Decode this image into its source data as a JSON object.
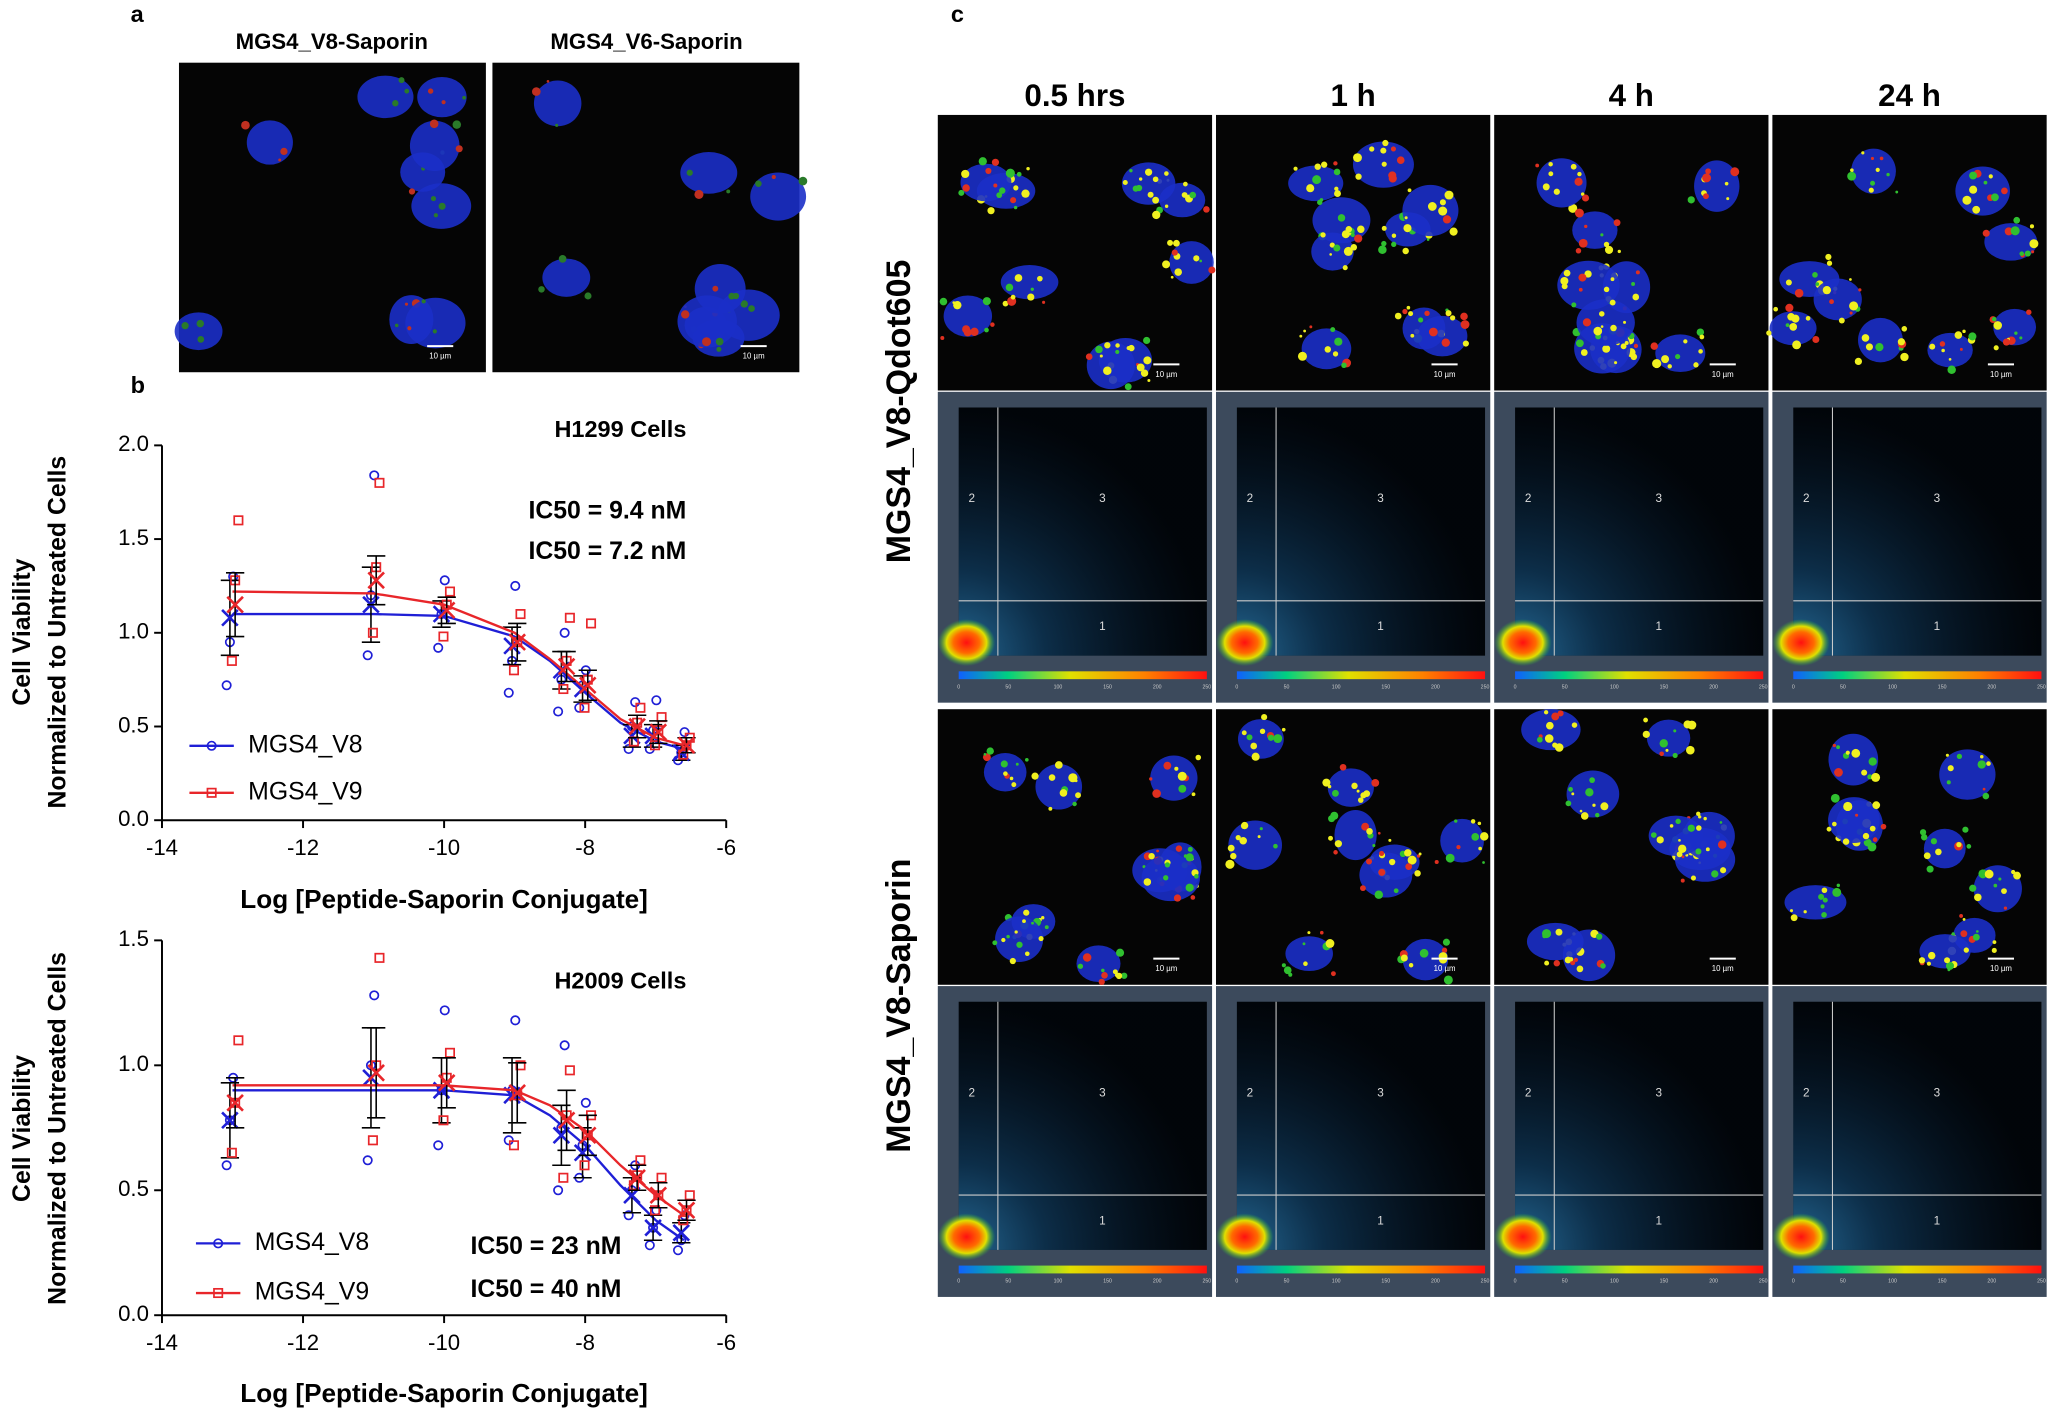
{
  "panel_labels": [
    "a",
    "b",
    "c"
  ],
  "panel_a": {
    "titles": [
      "MGS4_V8-Saporin",
      "MGS4_V6-Saporin"
    ],
    "scale_bar": "10 µm"
  },
  "panel_c": {
    "columns": [
      "0.5 hrs",
      "1 h",
      "4 h",
      "24 h"
    ],
    "rows": [
      "MGS4_V8-Qdot605",
      "MGS4_V8-Saporin"
    ],
    "quadrants": [
      "1",
      "2",
      "3"
    ],
    "colorbar_ticks": [
      "0",
      "50",
      "100",
      "150",
      "200",
      "250"
    ]
  },
  "chart_data": [
    {
      "type": "line",
      "title": "H1299 Cells",
      "annotations": [
        "IC50 = 9.4 nM",
        "IC50 = 7.2 nM"
      ],
      "x_label": "Log [Peptide-Saporin Conjugate]",
      "y_label": [
        "Cell Viability",
        "Normalized to Untreated Cells"
      ],
      "xlim": [
        -14,
        -6
      ],
      "xticks": [
        -14,
        -12,
        -10,
        -8,
        -6
      ],
      "ylim": [
        0,
        2
      ],
      "yticks": [
        {
          "value": 0,
          "label": "0.0"
        },
        0.5,
        {
          "value": 1,
          "label": "1.0"
        },
        1.5,
        {
          "value": 2,
          "label": "2.0"
        }
      ],
      "series": [
        {
          "name": "MGS4_V8",
          "color": "#1f1fd6",
          "marker": "circle",
          "x": [
            -13,
            -11,
            -10,
            -9,
            -8.3,
            -8,
            -7.3,
            -7,
            -6.6
          ],
          "values": [
            1.08,
            1.15,
            1.1,
            0.93,
            0.8,
            0.7,
            0.45,
            0.45,
            0.36
          ],
          "errors": [
            0.2,
            0.2,
            0.07,
            0.1,
            0.1,
            0.07,
            0.06,
            0.06,
            0.04
          ],
          "replicates": [
            [
              0.72,
              0.95,
              1.3
            ],
            [
              0.88,
              1.2,
              1.84
            ],
            [
              0.92,
              1.1,
              1.28
            ],
            [
              0.68,
              0.85,
              1.25
            ],
            [
              0.58,
              0.75,
              1.0
            ],
            [
              0.6,
              0.72,
              0.8
            ],
            [
              0.38,
              0.5,
              0.63
            ],
            [
              0.38,
              0.48,
              0.64
            ],
            [
              0.32,
              0.36,
              0.47
            ]
          ],
          "fit_x": [
            -13,
            -11,
            -10,
            -9,
            -8.5,
            -8,
            -7.5,
            -7,
            -6.6
          ],
          "fit_values": [
            1.1,
            1.1,
            1.09,
            0.98,
            0.85,
            0.68,
            0.52,
            0.42,
            0.38
          ]
        },
        {
          "name": "MGS4_V9",
          "color": "#e8262a",
          "marker": "square",
          "x": [
            -13,
            -11,
            -10,
            -9,
            -8.3,
            -8,
            -7.3,
            -7,
            -6.6
          ],
          "values": [
            1.15,
            1.28,
            1.12,
            0.95,
            0.82,
            0.72,
            0.5,
            0.47,
            0.4
          ],
          "errors": [
            0.17,
            0.13,
            0.07,
            0.1,
            0.08,
            0.08,
            0.06,
            0.06,
            0.04
          ],
          "replicates": [
            [
              0.85,
              1.28,
              1.6
            ],
            [
              1.0,
              1.35,
              1.8
            ],
            [
              0.98,
              1.15,
              1.22
            ],
            [
              0.8,
              0.95,
              1.1
            ],
            [
              0.7,
              0.85,
              1.08
            ],
            [
              0.6,
              0.75,
              1.05
            ],
            [
              0.42,
              0.52,
              0.6
            ],
            [
              0.4,
              0.48,
              0.55
            ],
            [
              0.35,
              0.4,
              0.44
            ]
          ],
          "fit_x": [
            -13,
            -11,
            -10,
            -9,
            -8.5,
            -8,
            -7.5,
            -7,
            -6.6
          ],
          "fit_values": [
            1.22,
            1.21,
            1.15,
            1.0,
            0.86,
            0.7,
            0.54,
            0.44,
            0.4
          ]
        }
      ]
    },
    {
      "type": "line",
      "title": "H2009 Cells",
      "annotations": [
        "IC50 = 23 nM",
        "IC50 = 40 nM"
      ],
      "x_label": "Log [Peptide-Saporin Conjugate]",
      "y_label": [
        "Cell Viability",
        "Normalized to Untreated Cells"
      ],
      "xlim": [
        -14,
        -6
      ],
      "xticks": [
        -14,
        -12,
        -10,
        -8,
        -6
      ],
      "ylim": [
        0,
        1.5
      ],
      "yticks": [
        {
          "value": 0,
          "label": "0.0"
        },
        0.5,
        {
          "value": 1,
          "label": "1.0"
        },
        1.5
      ],
      "series": [
        {
          "name": "MGS4_V8",
          "color": "#1f1fd6",
          "marker": "circle",
          "x": [
            -13,
            -11,
            -10,
            -9,
            -8.3,
            -8,
            -7.3,
            -7,
            -6.6
          ],
          "values": [
            0.78,
            0.95,
            0.9,
            0.88,
            0.72,
            0.65,
            0.48,
            0.35,
            0.33
          ],
          "errors": [
            0.15,
            0.2,
            0.13,
            0.15,
            0.12,
            0.1,
            0.07,
            0.05,
            0.04
          ],
          "replicates": [
            [
              0.6,
              0.78,
              0.95
            ],
            [
              0.62,
              1.0,
              1.28
            ],
            [
              0.68,
              0.9,
              1.22
            ],
            [
              0.7,
              0.9,
              1.18
            ],
            [
              0.5,
              0.75,
              1.08
            ],
            [
              0.55,
              0.68,
              0.85
            ],
            [
              0.4,
              0.5,
              0.6
            ],
            [
              0.28,
              0.35,
              0.42
            ],
            [
              0.26,
              0.3,
              0.4
            ]
          ],
          "fit_x": [
            -13,
            -11,
            -10,
            -9,
            -8.5,
            -8,
            -7.5,
            -7,
            -6.6
          ],
          "fit_values": [
            0.9,
            0.9,
            0.9,
            0.88,
            0.8,
            0.68,
            0.52,
            0.38,
            0.3
          ]
        },
        {
          "name": "MGS4_V9",
          "color": "#e8262a",
          "marker": "square",
          "x": [
            -13,
            -11,
            -10,
            -9,
            -8.3,
            -8,
            -7.3,
            -7,
            -6.6
          ],
          "values": [
            0.85,
            0.97,
            0.93,
            0.89,
            0.78,
            0.72,
            0.55,
            0.48,
            0.42
          ],
          "errors": [
            0.1,
            0.18,
            0.1,
            0.12,
            0.12,
            0.08,
            0.05,
            0.05,
            0.04
          ],
          "replicates": [
            [
              0.65,
              0.85,
              1.1
            ],
            [
              0.7,
              1.0,
              1.43
            ],
            [
              0.78,
              0.95,
              1.05
            ],
            [
              0.68,
              0.88,
              1.0
            ],
            [
              0.55,
              0.8,
              0.98
            ],
            [
              0.6,
              0.72,
              0.8
            ],
            [
              0.52,
              0.56,
              0.62
            ],
            [
              0.42,
              0.48,
              0.55
            ],
            [
              0.38,
              0.42,
              0.48
            ]
          ],
          "fit_x": [
            -13,
            -11,
            -10,
            -9,
            -8.5,
            -8,
            -7.5,
            -7,
            -6.6
          ],
          "fit_values": [
            0.92,
            0.92,
            0.92,
            0.9,
            0.84,
            0.74,
            0.6,
            0.48,
            0.4
          ]
        }
      ]
    }
  ]
}
